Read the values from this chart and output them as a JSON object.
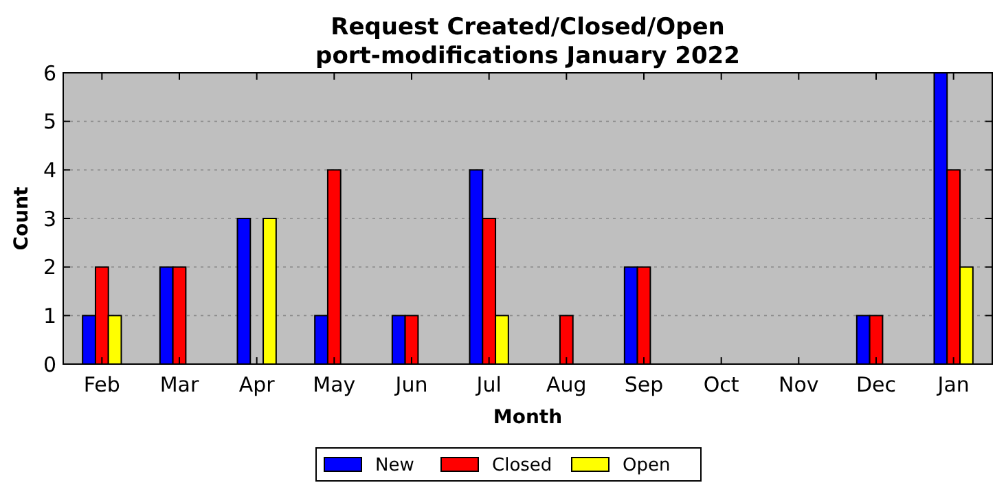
{
  "chart_data": {
    "type": "bar",
    "title": "Request Created/Closed/Open\nport-modifications January 2022",
    "xlabel": "Month",
    "ylabel": "Count",
    "categories": [
      "Feb",
      "Mar",
      "Apr",
      "May",
      "Jun",
      "Jul",
      "Aug",
      "Sep",
      "Oct",
      "Nov",
      "Dec",
      "Jan"
    ],
    "series": [
      {
        "name": "New",
        "color": "#0000ff",
        "values": [
          1,
          2,
          3,
          1,
          1,
          4,
          0,
          2,
          0,
          0,
          1,
          6
        ]
      },
      {
        "name": "Closed",
        "color": "#ff0000",
        "values": [
          2,
          2,
          0,
          4,
          1,
          3,
          1,
          2,
          0,
          0,
          1,
          4
        ]
      },
      {
        "name": "Open",
        "color": "#ffff00",
        "values": [
          1,
          0,
          3,
          0,
          0,
          1,
          0,
          0,
          0,
          0,
          0,
          2
        ]
      }
    ],
    "ylim": [
      0,
      6
    ],
    "yticks": [
      0,
      1,
      2,
      3,
      4,
      5,
      6
    ],
    "grid": "y",
    "legend": "bottom"
  }
}
